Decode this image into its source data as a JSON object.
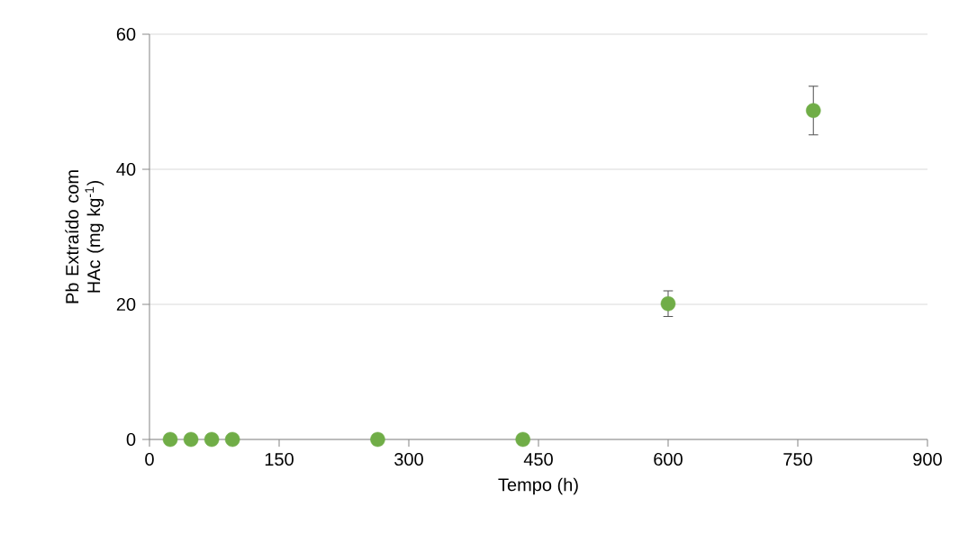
{
  "chart_data": {
    "type": "scatter",
    "xlabel": "Tempo (h)",
    "ylabel": "Pb Extraído com HAc (mg kg$^{-1}$)",
    "x": [
      24,
      48,
      72,
      96,
      264,
      432,
      600,
      768
    ],
    "series": [
      {
        "color": "#70ad47",
        "values": [
          0,
          0,
          0,
          0,
          0,
          0,
          20.1,
          48.7
        ],
        "errors": [
          null,
          null,
          null,
          null,
          null,
          null,
          1.9,
          3.6
        ]
      }
    ],
    "xlim": [
      0,
      900
    ],
    "xticks": [
      0,
      150,
      300,
      450,
      600,
      750,
      900
    ],
    "ylim": [
      0,
      60
    ],
    "yticks": [
      0,
      20,
      40,
      60
    ],
    "grid": "y",
    "marker": "circle"
  }
}
